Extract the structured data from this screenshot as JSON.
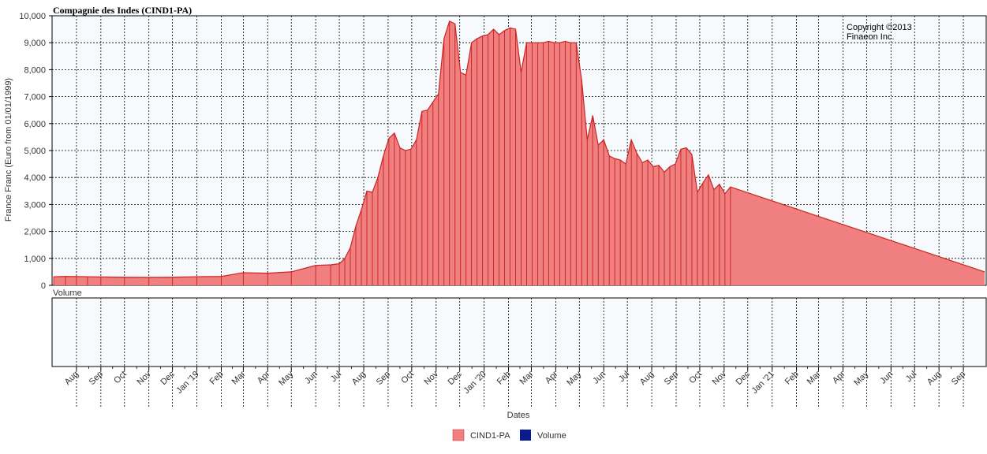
{
  "chart_data": {
    "type": "area",
    "title": "Compagnie des Indes (CIND1-PA)",
    "copyright": [
      "Copyright ©2013",
      "Finaeon Inc."
    ],
    "ylabel": "France Franc (Euro from 01/01/1999)",
    "xlabel": "Dates",
    "volume_label": "Volume",
    "ylim": [
      0,
      10000
    ],
    "yticks": [
      0,
      1000,
      2000,
      3000,
      4000,
      5000,
      6000,
      7000,
      8000,
      9000,
      10000
    ],
    "ytick_labels": [
      "0",
      "1,000",
      "2,000",
      "3,000",
      "4,000",
      "5,000",
      "6,000",
      "7,000",
      "8,000",
      "9,000",
      "10,000"
    ],
    "x_domain": [
      "1918-07-01",
      "1921-09-30"
    ],
    "xticks": [
      {
        "date": "1918-08-01",
        "label": "Aug"
      },
      {
        "date": "1918-09-01",
        "label": "Sep"
      },
      {
        "date": "1918-10-01",
        "label": "Oct"
      },
      {
        "date": "1918-11-01",
        "label": "Nov"
      },
      {
        "date": "1918-12-01",
        "label": "Dec"
      },
      {
        "date": "1919-01-01",
        "label": "Jan '19"
      },
      {
        "date": "1919-02-01",
        "label": "Feb"
      },
      {
        "date": "1919-03-01",
        "label": "Mar"
      },
      {
        "date": "1919-04-01",
        "label": "Apr"
      },
      {
        "date": "1919-05-01",
        "label": "May"
      },
      {
        "date": "1919-06-01",
        "label": "Jun"
      },
      {
        "date": "1919-07-01",
        "label": "Jul"
      },
      {
        "date": "1919-08-01",
        "label": "Aug"
      },
      {
        "date": "1919-09-01",
        "label": "Sep"
      },
      {
        "date": "1919-10-01",
        "label": "Oct"
      },
      {
        "date": "1919-11-01",
        "label": "Nov"
      },
      {
        "date": "1919-12-01",
        "label": "Dec"
      },
      {
        "date": "1920-01-01",
        "label": "Jan '20"
      },
      {
        "date": "1920-02-01",
        "label": "Feb"
      },
      {
        "date": "1920-03-01",
        "label": "Mar"
      },
      {
        "date": "1920-04-01",
        "label": "Apr"
      },
      {
        "date": "1920-05-01",
        "label": "May"
      },
      {
        "date": "1920-06-01",
        "label": "Jun"
      },
      {
        "date": "1920-07-01",
        "label": "Jul"
      },
      {
        "date": "1920-08-01",
        "label": "Aug"
      },
      {
        "date": "1920-09-01",
        "label": "Sep"
      },
      {
        "date": "1920-10-01",
        "label": "Oct"
      },
      {
        "date": "1920-11-01",
        "label": "Nov"
      },
      {
        "date": "1920-12-01",
        "label": "Dec"
      },
      {
        "date": "1921-01-01",
        "label": "Jan '21"
      },
      {
        "date": "1921-02-01",
        "label": "Feb"
      },
      {
        "date": "1921-03-01",
        "label": "Mar"
      },
      {
        "date": "1921-04-01",
        "label": "Apr"
      },
      {
        "date": "1921-05-01",
        "label": "May"
      },
      {
        "date": "1921-06-01",
        "label": "Jun"
      },
      {
        "date": "1921-07-01",
        "label": "Jul"
      },
      {
        "date": "1921-08-01",
        "label": "Aug"
      },
      {
        "date": "1921-09-01",
        "label": "Sep"
      }
    ],
    "grid": true,
    "legend_position": "bottom-center",
    "series": [
      {
        "name": "CIND1-PA",
        "color": "#f08080",
        "stroke": "#cc2222",
        "points": [
          [
            "1918-07-03",
            320
          ],
          [
            "1918-07-18",
            330
          ],
          [
            "1918-08-01",
            325
          ],
          [
            "1918-08-15",
            320
          ],
          [
            "1918-09-01",
            310
          ],
          [
            "1918-10-01",
            300
          ],
          [
            "1918-11-01",
            295
          ],
          [
            "1918-12-01",
            300
          ],
          [
            "1919-01-01",
            320
          ],
          [
            "1919-02-01",
            330
          ],
          [
            "1919-03-01",
            470
          ],
          [
            "1919-04-01",
            450
          ],
          [
            "1919-05-01",
            500
          ],
          [
            "1919-06-01",
            740
          ],
          [
            "1919-06-20",
            760
          ],
          [
            "1919-07-01",
            800
          ],
          [
            "1919-07-08",
            1000
          ],
          [
            "1919-07-15",
            1400
          ],
          [
            "1919-07-22",
            2200
          ],
          [
            "1919-07-29",
            2800
          ],
          [
            "1919-08-05",
            3500
          ],
          [
            "1919-08-12",
            3450
          ],
          [
            "1919-08-19",
            4000
          ],
          [
            "1919-08-26",
            4800
          ],
          [
            "1919-09-02",
            5450
          ],
          [
            "1919-09-09",
            5650
          ],
          [
            "1919-09-16",
            5100
          ],
          [
            "1919-09-23",
            5000
          ],
          [
            "1919-09-30",
            5050
          ],
          [
            "1919-10-07",
            5400
          ],
          [
            "1919-10-14",
            6450
          ],
          [
            "1919-10-21",
            6500
          ],
          [
            "1919-10-28",
            6800
          ],
          [
            "1919-11-04",
            7100
          ],
          [
            "1919-11-11",
            9150
          ],
          [
            "1919-11-18",
            9800
          ],
          [
            "1919-11-25",
            9700
          ],
          [
            "1919-12-02",
            7900
          ],
          [
            "1919-12-09",
            7800
          ],
          [
            "1919-12-16",
            9000
          ],
          [
            "1919-12-23",
            9150
          ],
          [
            "1919-12-30",
            9250
          ],
          [
            "1920-01-06",
            9300
          ],
          [
            "1920-01-13",
            9500
          ],
          [
            "1920-01-20",
            9300
          ],
          [
            "1920-01-27",
            9450
          ],
          [
            "1920-02-03",
            9550
          ],
          [
            "1920-02-10",
            9500
          ],
          [
            "1920-02-17",
            7900
          ],
          [
            "1920-02-24",
            9000
          ],
          [
            "1920-03-02",
            9000
          ],
          [
            "1920-03-09",
            9000
          ],
          [
            "1920-03-16",
            9000
          ],
          [
            "1920-03-23",
            9050
          ],
          [
            "1920-03-30",
            9000
          ],
          [
            "1920-04-06",
            9000
          ],
          [
            "1920-04-13",
            9050
          ],
          [
            "1920-04-20",
            9000
          ],
          [
            "1920-04-27",
            9000
          ],
          [
            "1920-05-04",
            7600
          ],
          [
            "1920-05-11",
            5400
          ],
          [
            "1920-05-18",
            6300
          ],
          [
            "1920-05-25",
            5200
          ],
          [
            "1920-06-01",
            5400
          ],
          [
            "1920-06-08",
            4800
          ],
          [
            "1920-06-15",
            4700
          ],
          [
            "1920-06-22",
            4650
          ],
          [
            "1920-06-29",
            4500
          ],
          [
            "1920-07-06",
            5400
          ],
          [
            "1920-07-13",
            4900
          ],
          [
            "1920-07-20",
            4550
          ],
          [
            "1920-07-27",
            4650
          ],
          [
            "1920-08-03",
            4400
          ],
          [
            "1920-08-10",
            4450
          ],
          [
            "1920-08-17",
            4200
          ],
          [
            "1920-08-24",
            4400
          ],
          [
            "1920-08-31",
            4500
          ],
          [
            "1920-09-07",
            5050
          ],
          [
            "1920-09-14",
            5100
          ],
          [
            "1920-09-21",
            4850
          ],
          [
            "1920-09-28",
            3450
          ],
          [
            "1920-10-05",
            3800
          ],
          [
            "1920-10-12",
            4100
          ],
          [
            "1920-10-19",
            3550
          ],
          [
            "1920-10-26",
            3750
          ],
          [
            "1920-11-02",
            3400
          ],
          [
            "1920-11-09",
            3650
          ],
          [
            "1921-09-28",
            500
          ]
        ]
      },
      {
        "name": "Volume",
        "color": "#0a1a8f",
        "points": []
      }
    ]
  }
}
